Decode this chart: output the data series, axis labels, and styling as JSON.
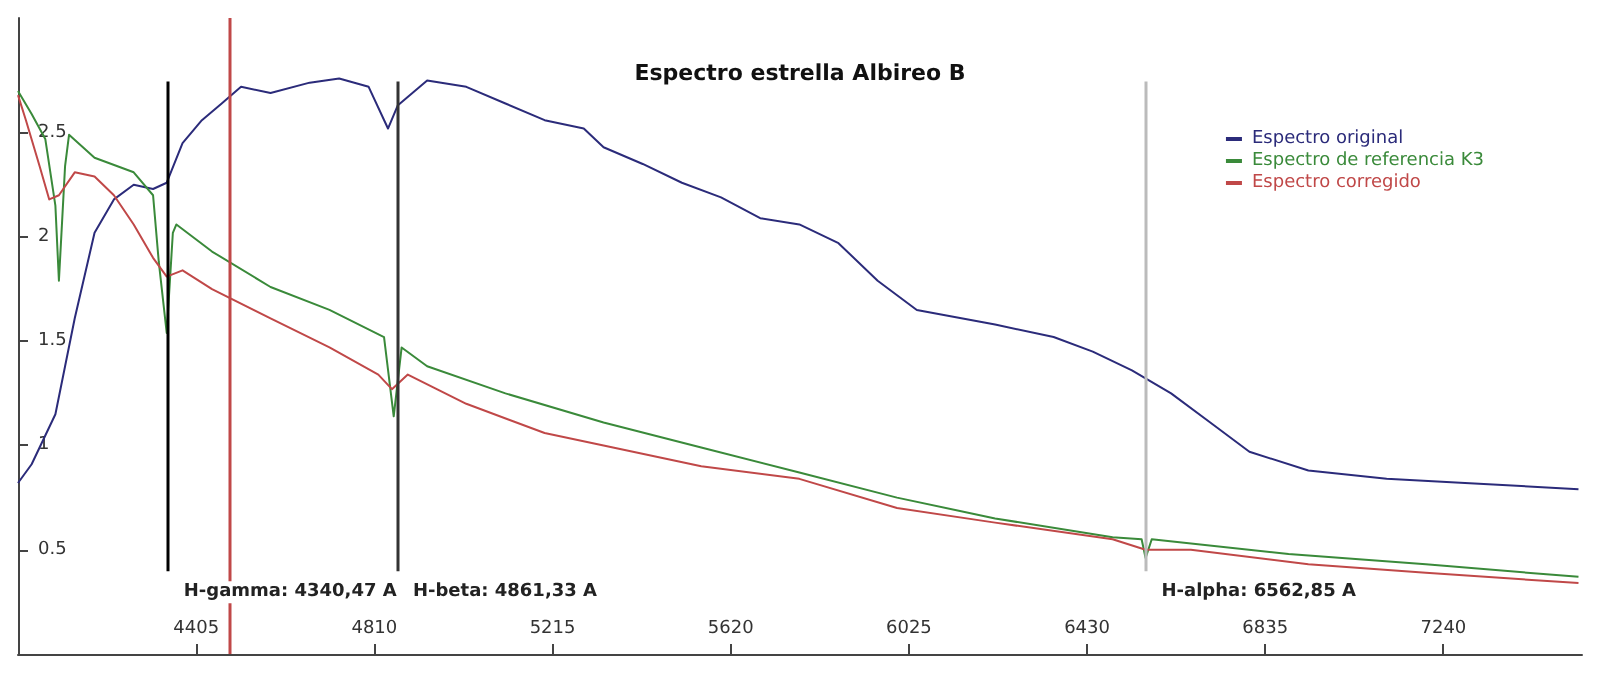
{
  "chart_data": {
    "type": "line",
    "title": "Espectro estrella Albireo B",
    "xlim": [
      4000,
      7555
    ],
    "ylim": [
      0,
      3.05
    ],
    "xticks": [
      4405,
      4810,
      5215,
      5620,
      6025,
      6430,
      6835,
      7240
    ],
    "yticks": [
      0.5,
      1,
      1.5,
      2,
      2.5
    ],
    "grid": false,
    "legend": "top right",
    "marker": "none",
    "line_style": "solid",
    "series": [
      {
        "name": "Espectro original",
        "color": "#2b2b7a",
        "x": [
          4000,
          4031,
          4085,
          4107,
          4129,
          4174,
          4218,
          4263,
          4307,
          4338,
          4374,
          4418,
          4463,
          4507,
          4574,
          4663,
          4730,
          4797,
          4841,
          4863,
          4930,
          5019,
          5108,
          5197,
          5286,
          5331,
          5420,
          5509,
          5598,
          5687,
          5776,
          5865,
          5954,
          6043,
          6221,
          6354,
          6443,
          6532,
          6621,
          6710,
          6799,
          6933,
          7111,
          7289,
          7547
        ],
        "values": [
          0.82,
          0.91,
          1.15,
          1.38,
          1.61,
          2.02,
          2.18,
          2.25,
          2.23,
          2.26,
          2.45,
          2.56,
          2.64,
          2.72,
          2.69,
          2.74,
          2.76,
          2.72,
          2.52,
          2.63,
          2.75,
          2.72,
          2.64,
          2.56,
          2.52,
          2.43,
          2.35,
          2.26,
          2.19,
          2.09,
          2.06,
          1.97,
          1.79,
          1.65,
          1.58,
          1.52,
          1.45,
          1.36,
          1.25,
          1.11,
          0.97,
          0.88,
          0.84,
          0.82,
          0.79
        ]
      },
      {
        "name": "Espectro de referencia K3",
        "color": "#3a8a3a",
        "x": [
          4000,
          4031,
          4062,
          4085,
          4093,
          4107,
          4116,
          4174,
          4263,
          4307,
          4320,
          4338,
          4352,
          4360,
          4441,
          4574,
          4708,
          4832,
          4854,
          4872,
          4930,
          5108,
          5331,
          5553,
          5776,
          5998,
          6221,
          6488,
          6554,
          6563,
          6577,
          6888,
          7200,
          7547
        ],
        "values": [
          2.7,
          2.59,
          2.47,
          2.15,
          1.79,
          2.34,
          2.49,
          2.38,
          2.31,
          2.2,
          1.88,
          1.54,
          2.02,
          2.06,
          1.93,
          1.76,
          1.65,
          1.52,
          1.14,
          1.47,
          1.38,
          1.25,
          1.11,
          0.99,
          0.87,
          0.75,
          0.65,
          0.56,
          0.55,
          0.46,
          0.55,
          0.48,
          0.43,
          0.37
        ]
      },
      {
        "name": "Espectro corregido",
        "color": "#c04848",
        "x": [
          4000,
          4018,
          4049,
          4071,
          4093,
          4129,
          4174,
          4218,
          4263,
          4307,
          4338,
          4374,
          4441,
          4574,
          4708,
          4819,
          4850,
          4886,
          5019,
          5197,
          5331,
          5553,
          5776,
          5998,
          6221,
          6488,
          6563,
          6666,
          6933,
          7200,
          7547
        ],
        "values": [
          2.68,
          2.56,
          2.34,
          2.18,
          2.2,
          2.31,
          2.29,
          2.2,
          2.06,
          1.9,
          1.81,
          1.84,
          1.75,
          1.61,
          1.47,
          1.34,
          1.27,
          1.34,
          1.2,
          1.06,
          1.0,
          0.9,
          0.84,
          0.7,
          0.63,
          0.55,
          0.5,
          0.5,
          0.43,
          0.39,
          0.34
        ]
      }
    ],
    "ref_lines": [
      {
        "axis": "x",
        "value": 4340.47,
        "label": "H-gamma: 4340,47 A",
        "color": "#000000"
      },
      {
        "axis": "x",
        "value": 4481,
        "color": "#c04848"
      },
      {
        "axis": "x",
        "value": 4861.33,
        "label": "H-beta: 4861,33 A",
        "color": "#333333"
      },
      {
        "axis": "x",
        "value": 6562.85,
        "label": "H-alpha: 6562,85 A",
        "color": "#bbbbbb"
      }
    ]
  }
}
